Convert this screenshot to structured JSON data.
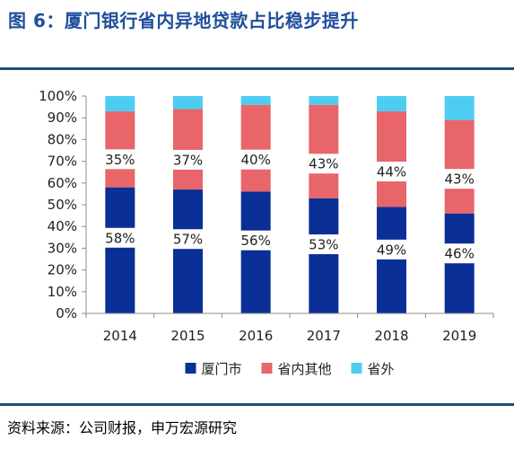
{
  "figure": {
    "title": "图 6：厦门银行省内异地贷款占比稳步提升",
    "source": "资料来源：公司财报，申万宏源研究"
  },
  "colors": {
    "title": "#1f4e9c",
    "rule": "#1f4e79",
    "axis": "#8c8c8c"
  },
  "chart_data": {
    "type": "bar",
    "stacked": true,
    "categories": [
      "2014",
      "2015",
      "2016",
      "2017",
      "2018",
      "2019"
    ],
    "series": [
      {
        "name": "厦门市",
        "color": "#0a2f96",
        "values": [
          58,
          57,
          56,
          53,
          49,
          46
        ]
      },
      {
        "name": "省内其他",
        "color": "#e86569",
        "values": [
          35,
          37,
          40,
          43,
          44,
          43
        ]
      },
      {
        "name": "省外",
        "color": "#4dcdf2",
        "values": [
          7,
          6,
          4,
          4,
          7,
          11
        ]
      }
    ],
    "data_labels": {
      "厦门市": [
        "58%",
        "57%",
        "56%",
        "53%",
        "49%",
        "46%"
      ],
      "省内其他": [
        "35%",
        "37%",
        "40%",
        "43%",
        "44%",
        "43%"
      ]
    },
    "y_ticks": [
      "0%",
      "10%",
      "20%",
      "30%",
      "40%",
      "50%",
      "60%",
      "70%",
      "80%",
      "90%",
      "100%"
    ],
    "ylim": [
      0,
      100
    ],
    "legend_position": "bottom",
    "grid": false
  }
}
